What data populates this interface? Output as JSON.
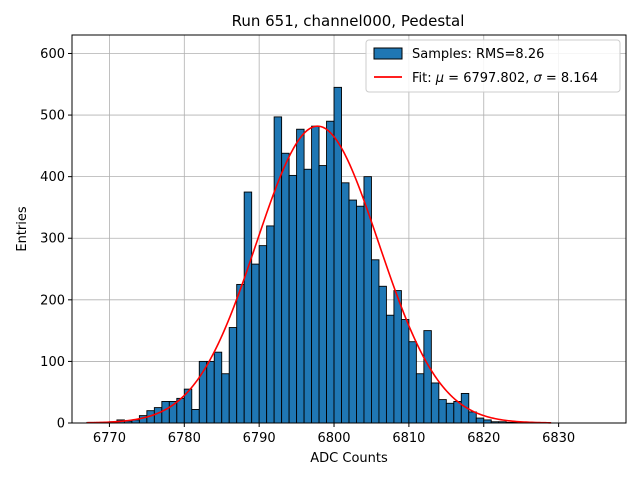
{
  "chart_data": {
    "type": "bar",
    "title": "Run 651, channel000, Pedestal",
    "xlabel": "ADC Counts",
    "ylabel": "Entries",
    "xlim": [
      6765,
      6839
    ],
    "ylim": [
      0,
      630
    ],
    "grid": true,
    "legend_position": "top-right",
    "x_ticks": [
      6770,
      6780,
      6790,
      6800,
      6810,
      6820,
      6830
    ],
    "y_ticks": [
      0,
      100,
      200,
      300,
      400,
      500,
      600
    ],
    "histogram": {
      "name": "Samples: RMS=8.26",
      "color": "#1f77b4",
      "edge_color": "#000000",
      "bin_start": 6767,
      "bin_width": 1,
      "counts": [
        1,
        1,
        1,
        2,
        5,
        3,
        5,
        12,
        20,
        25,
        35,
        35,
        40,
        55,
        22,
        100,
        100,
        115,
        80,
        155,
        225,
        375,
        258,
        288,
        320,
        497,
        438,
        402,
        477,
        412,
        482,
        418,
        490,
        545,
        390,
        362,
        352,
        400,
        265,
        222,
        175,
        215,
        168,
        132,
        80,
        150,
        65,
        38,
        32,
        35,
        48,
        18,
        8,
        5,
        2,
        2,
        1,
        1,
        1,
        1
      ]
    },
    "fit": {
      "name_prefix": "Fit: ",
      "name_mu_symbol": "μ",
      "name_mu_value": " = 6797.802, ",
      "name_sigma_symbol": "σ",
      "name_sigma_value": " = 8.164",
      "color": "#ff0000",
      "mu": 6797.802,
      "sigma": 8.164,
      "amplitude": 482,
      "x_range": [
        6767,
        6829
      ]
    }
  }
}
